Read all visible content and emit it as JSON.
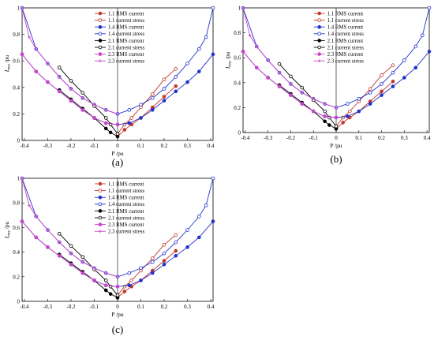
{
  "legend": [
    {
      "label": "1.1 RMS current",
      "color": "#c0392b",
      "marker": "filled-circle"
    },
    {
      "label": "1.1 current stress",
      "color": "#c0392b",
      "marker": "open-circle"
    },
    {
      "label": "1.4 RMS current",
      "color": "#2233cc",
      "marker": "filled-circle"
    },
    {
      "label": "1.4 current stress",
      "color": "#2233cc",
      "marker": "open-circle"
    },
    {
      "label": "2.1 RMS current",
      "color": "#000000",
      "marker": "filled-circle"
    },
    {
      "label": "2.1 current stress",
      "color": "#000000",
      "marker": "open-circle"
    },
    {
      "label": "2.3 RMS current",
      "color": "#cc44cc",
      "marker": "filled-circle"
    },
    {
      "label": "2.3 current stress",
      "color": "#cc44cc",
      "marker": "cross"
    }
  ],
  "axes": {
    "xlabel": "P /pu",
    "ylabel": "I /pu",
    "ylabel_subscript": "rms",
    "xticks": [
      "-0.4",
      "-0.3",
      "-0.2",
      "-0.1",
      "0",
      "0.1",
      "0.2",
      "0.3",
      "0.4"
    ],
    "yticks": [
      "0",
      "0.2",
      "0.4",
      "0.6",
      "0.8",
      "1"
    ],
    "xlim": [
      -0.41,
      0.41
    ],
    "ylim": [
      0,
      1
    ]
  },
  "chart_data": [
    {
      "type": "line",
      "panel": "(a)",
      "xlabel": "P /pu",
      "ylabel": "I rms /pu",
      "xlim": [
        -0.41,
        0.41
      ],
      "ylim": [
        0,
        1
      ],
      "series": [
        {
          "name": "1.1 RMS current",
          "x": [
            0,
            0.03,
            0.06,
            0.1,
            0.15,
            0.2,
            0.25
          ],
          "y": [
            0.03,
            0.08,
            0.12,
            0.17,
            0.25,
            0.33,
            0.41
          ]
        },
        {
          "name": "1.1 current stress",
          "x": [
            0,
            0.03,
            0.06,
            0.1,
            0.15,
            0.2,
            0.25
          ],
          "y": [
            0.05,
            0.12,
            0.17,
            0.25,
            0.35,
            0.46,
            0.54
          ]
        },
        {
          "name": "1.4 RMS current",
          "x": [
            -0.41,
            -0.35,
            -0.3,
            -0.25,
            -0.2,
            -0.15,
            -0.1,
            -0.05,
            0,
            0.05,
            0.1,
            0.15,
            0.2,
            0.25,
            0.3,
            0.35,
            0.41
          ],
          "y": [
            0.65,
            0.52,
            0.44,
            0.37,
            0.3,
            0.23,
            0.17,
            0.13,
            0.12,
            0.13,
            0.17,
            0.23,
            0.3,
            0.37,
            0.44,
            0.52,
            0.65
          ]
        },
        {
          "name": "1.4 current stress",
          "x": [
            -0.41,
            -0.35,
            -0.3,
            -0.25,
            -0.2,
            -0.15,
            -0.1,
            -0.05,
            0,
            0.05,
            0.1,
            0.15,
            0.2,
            0.25,
            0.3,
            0.35,
            0.38,
            0.41
          ],
          "y": [
            1,
            0.69,
            0.58,
            0.48,
            0.39,
            0.32,
            0.27,
            0.23,
            0.2,
            0.23,
            0.27,
            0.32,
            0.39,
            0.48,
            0.58,
            0.69,
            0.78,
            1
          ]
        },
        {
          "name": "2.1 RMS current",
          "x": [
            -0.25,
            -0.2,
            -0.15,
            -0.1,
            -0.05,
            -0.03,
            0
          ],
          "y": [
            0.38,
            0.31,
            0.24,
            0.17,
            0.09,
            0.06,
            0.03
          ]
        },
        {
          "name": "2.1 current stress",
          "x": [
            -0.25,
            -0.2,
            -0.15,
            -0.1,
            -0.05,
            -0.03,
            0
          ],
          "y": [
            0.55,
            0.45,
            0.36,
            0.26,
            0.17,
            0.12,
            0.05
          ]
        },
        {
          "name": "2.3 RMS current",
          "x": [
            -0.41,
            -0.35,
            -0.3,
            -0.25,
            -0.2,
            -0.15,
            -0.1,
            -0.05,
            0
          ],
          "y": [
            0.65,
            0.52,
            0.44,
            0.37,
            0.3,
            0.23,
            0.17,
            0.13,
            0.12
          ]
        },
        {
          "name": "2.3 current stress",
          "x": [
            -0.41,
            -0.38,
            -0.35,
            -0.3,
            -0.25,
            -0.2,
            -0.15,
            -0.1,
            -0.05,
            0
          ],
          "y": [
            1,
            0.78,
            0.69,
            0.58,
            0.48,
            0.39,
            0.32,
            0.27,
            0.23,
            0.2
          ]
        }
      ]
    },
    {
      "type": "line",
      "panel": "(b)",
      "xlabel": "P /pu",
      "ylabel": "I rms /pu",
      "xlim": [
        -0.41,
        0.41
      ],
      "ylim": [
        0,
        1
      ],
      "series": [
        {
          "name": "1.1 RMS current",
          "x": [
            0,
            0.03,
            0.06,
            0.1,
            0.15,
            0.2,
            0.25
          ],
          "y": [
            0.03,
            0.08,
            0.12,
            0.17,
            0.25,
            0.33,
            0.41
          ]
        },
        {
          "name": "1.1 current stress",
          "x": [
            0,
            0.03,
            0.06,
            0.1,
            0.15,
            0.2,
            0.25
          ],
          "y": [
            0.05,
            0.12,
            0.17,
            0.25,
            0.35,
            0.46,
            0.54
          ]
        },
        {
          "name": "1.4 RMS current",
          "x": [
            -0.41,
            -0.35,
            -0.3,
            -0.25,
            -0.2,
            -0.15,
            -0.1,
            -0.05,
            0,
            0.05,
            0.1,
            0.15,
            0.2,
            0.25,
            0.3,
            0.35,
            0.41
          ],
          "y": [
            0.65,
            0.52,
            0.44,
            0.37,
            0.3,
            0.23,
            0.17,
            0.13,
            0.12,
            0.13,
            0.17,
            0.23,
            0.3,
            0.37,
            0.44,
            0.52,
            0.65
          ]
        },
        {
          "name": "1.4 current stress",
          "x": [
            -0.41,
            -0.35,
            -0.3,
            -0.25,
            -0.2,
            -0.15,
            -0.1,
            -0.05,
            0,
            0.05,
            0.1,
            0.15,
            0.2,
            0.25,
            0.3,
            0.35,
            0.38,
            0.41
          ],
          "y": [
            1,
            0.69,
            0.58,
            0.48,
            0.39,
            0.32,
            0.27,
            0.23,
            0.2,
            0.23,
            0.27,
            0.32,
            0.39,
            0.48,
            0.58,
            0.69,
            0.78,
            1
          ]
        },
        {
          "name": "2.1 RMS current",
          "x": [
            -0.25,
            -0.2,
            -0.15,
            -0.1,
            -0.05,
            -0.03,
            0
          ],
          "y": [
            0.38,
            0.31,
            0.24,
            0.17,
            0.09,
            0.06,
            0.03
          ]
        },
        {
          "name": "2.1 current stress",
          "x": [
            -0.25,
            -0.2,
            -0.15,
            -0.1,
            -0.05,
            -0.03,
            0
          ],
          "y": [
            0.55,
            0.45,
            0.36,
            0.26,
            0.17,
            0.12,
            0.05
          ]
        },
        {
          "name": "2.3 RMS current",
          "x": [
            -0.41,
            -0.35,
            -0.3,
            -0.25,
            -0.2,
            -0.15,
            -0.1,
            -0.05,
            0
          ],
          "y": [
            0.65,
            0.52,
            0.44,
            0.37,
            0.3,
            0.23,
            0.17,
            0.13,
            0.12
          ]
        },
        {
          "name": "2.3 current stress",
          "x": [
            -0.41,
            -0.38,
            -0.35,
            -0.3,
            -0.25,
            -0.2,
            -0.15,
            -0.1,
            -0.05,
            0
          ],
          "y": [
            1,
            0.78,
            0.69,
            0.58,
            0.48,
            0.39,
            0.32,
            0.27,
            0.23,
            0.2
          ]
        }
      ]
    },
    {
      "type": "line",
      "panel": "(c)",
      "xlabel": "P /pu",
      "ylabel": "I rms /pu",
      "xlim": [
        -0.41,
        0.41
      ],
      "ylim": [
        0,
        1
      ],
      "series": [
        {
          "name": "1.1 RMS current",
          "x": [
            0,
            0.03,
            0.06,
            0.1,
            0.15,
            0.2,
            0.25
          ],
          "y": [
            0.03,
            0.08,
            0.12,
            0.17,
            0.25,
            0.33,
            0.41
          ]
        },
        {
          "name": "1.1 current stress",
          "x": [
            0,
            0.03,
            0.06,
            0.1,
            0.15,
            0.2,
            0.25
          ],
          "y": [
            0.05,
            0.12,
            0.17,
            0.25,
            0.35,
            0.46,
            0.54
          ]
        },
        {
          "name": "1.4 RMS current",
          "x": [
            -0.41,
            -0.35,
            -0.3,
            -0.25,
            -0.2,
            -0.15,
            -0.1,
            -0.05,
            0,
            0.05,
            0.1,
            0.15,
            0.2,
            0.25,
            0.3,
            0.35,
            0.41
          ],
          "y": [
            0.65,
            0.52,
            0.44,
            0.37,
            0.3,
            0.23,
            0.17,
            0.13,
            0.12,
            0.13,
            0.17,
            0.23,
            0.3,
            0.37,
            0.44,
            0.52,
            0.65
          ]
        },
        {
          "name": "1.4 current stress",
          "x": [
            -0.41,
            -0.35,
            -0.3,
            -0.25,
            -0.2,
            -0.15,
            -0.1,
            -0.05,
            0,
            0.05,
            0.1,
            0.15,
            0.2,
            0.25,
            0.3,
            0.35,
            0.38,
            0.41
          ],
          "y": [
            1,
            0.69,
            0.58,
            0.48,
            0.39,
            0.32,
            0.27,
            0.23,
            0.2,
            0.23,
            0.27,
            0.32,
            0.39,
            0.48,
            0.58,
            0.69,
            0.78,
            1
          ]
        },
        {
          "name": "2.1 RMS current",
          "x": [
            -0.25,
            -0.2,
            -0.15,
            -0.1,
            -0.05,
            -0.03,
            0
          ],
          "y": [
            0.38,
            0.31,
            0.24,
            0.17,
            0.09,
            0.06,
            0.03
          ]
        },
        {
          "name": "2.1 current stress",
          "x": [
            -0.25,
            -0.2,
            -0.15,
            -0.1,
            -0.05,
            -0.03,
            0
          ],
          "y": [
            0.55,
            0.45,
            0.36,
            0.26,
            0.17,
            0.12,
            0.05
          ]
        },
        {
          "name": "2.3 RMS current",
          "x": [
            -0.41,
            -0.35,
            -0.3,
            -0.25,
            -0.2,
            -0.15,
            -0.1,
            -0.05,
            0
          ],
          "y": [
            0.65,
            0.52,
            0.44,
            0.37,
            0.3,
            0.23,
            0.17,
            0.13,
            0.12
          ]
        },
        {
          "name": "2.3 current stress",
          "x": [
            -0.41,
            -0.38,
            -0.35,
            -0.3,
            -0.25,
            -0.2,
            -0.15,
            -0.1,
            -0.05,
            0
          ],
          "y": [
            1,
            0.78,
            0.69,
            0.58,
            0.48,
            0.39,
            0.32,
            0.27,
            0.23,
            0.2
          ]
        }
      ]
    }
  ]
}
